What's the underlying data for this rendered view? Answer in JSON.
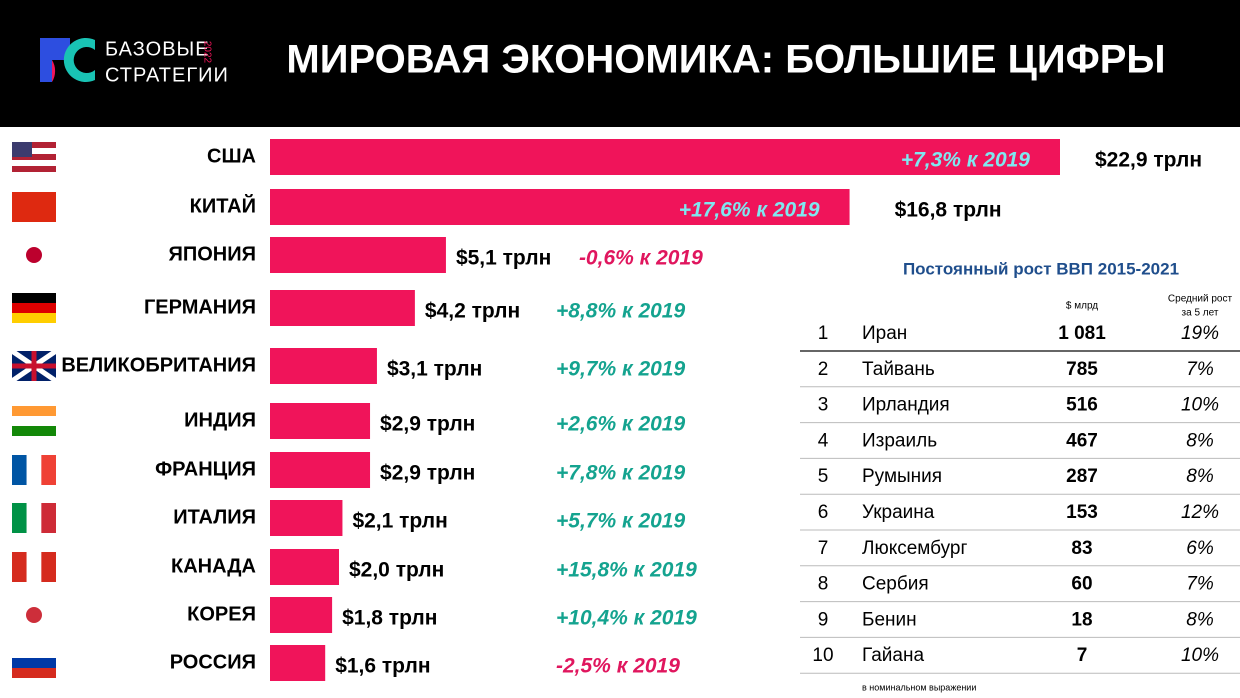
{
  "header": {
    "logo": {
      "line1": "БАЗОВЫЕ",
      "line2": "СТРАТЕГИИ",
      "year": "2022"
    },
    "title": "МИРОВАЯ ЭКОНОМИКА: БОЛЬШИЕ ЦИФРЫ"
  },
  "chart_data": {
    "type": "bar",
    "orientation": "horizontal",
    "color": "#f0145a",
    "categories": [
      "США",
      "КИТАЙ",
      "ЯПОНИЯ",
      "ГЕРМАНИЯ",
      "ВЕЛИКОБРИТАНИЯ",
      "ИНДИЯ",
      "ФРАНЦИЯ",
      "ИТАЛИЯ",
      "КАНАДА",
      "КОРЕЯ",
      "РОССИЯ"
    ],
    "values": [
      22.9,
      16.8,
      5.1,
      4.2,
      3.1,
      2.9,
      2.9,
      2.1,
      2.0,
      1.8,
      1.6
    ],
    "value_labels": [
      "$22,9 трлн",
      "$16,8 трлн",
      "$5,1 трлн",
      "$4,2 трлн",
      "$3,1 трлн",
      "$2,9 трлн",
      "$2,9 трлн",
      "$2,1 трлн",
      "$2,0 трлн",
      "$1,8 трлн",
      "$1,6 трлн"
    ],
    "growth_labels": [
      "+7,3% к 2019",
      "+17,6% к 2019",
      "-0,6% к 2019",
      "+8,8% к 2019",
      "+9,7% к 2019",
      "+2,6% к 2019",
      "+7,8% к 2019",
      "+5,7% к 2019",
      "+15,8% к 2019",
      "+10,4% к 2019",
      "-2,5% к 2019"
    ]
  },
  "table": {
    "title": "Постоянный рост ВВП 2015-2021",
    "columns": [
      "$ млрд",
      [
        "Средний рост",
        "за 5 лет"
      ]
    ],
    "rows": [
      [
        "1",
        "Иран",
        "1 081",
        "19%"
      ],
      [
        "2",
        "Тайвань",
        "785",
        "7%"
      ],
      [
        "3",
        "Ирландия",
        "516",
        "10%"
      ],
      [
        "4",
        "Израиль",
        "467",
        "8%"
      ],
      [
        "5",
        "Румыния",
        "287",
        "8%"
      ],
      [
        "6",
        "Украина",
        "153",
        "12%"
      ],
      [
        "7",
        "Люксембург",
        "83",
        "6%"
      ],
      [
        "8",
        "Сербия",
        "60",
        "7%"
      ],
      [
        "9",
        "Бенин",
        "18",
        "8%"
      ],
      [
        "10",
        "Гайана",
        "7",
        "10%"
      ]
    ],
    "note": "в номинальном выражении"
  }
}
